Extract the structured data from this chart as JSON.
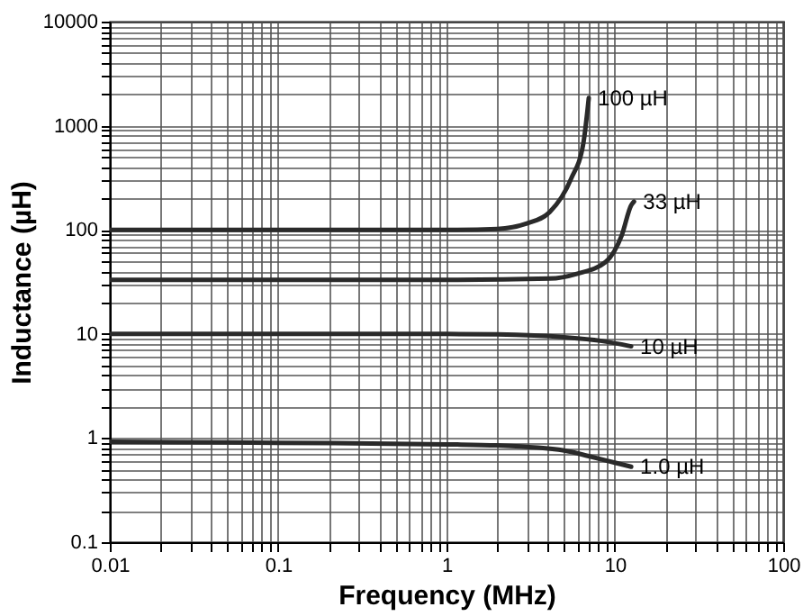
{
  "chart_data": {
    "type": "line",
    "xlabel": "Frequency (MHz)",
    "ylabel": "Inductance (µH)",
    "log": "xy",
    "grid": true,
    "legend": false,
    "line_style": "solid",
    "marker": "none",
    "xlim": [
      0.01,
      100
    ],
    "ylim": [
      0.1,
      10000
    ],
    "xticks": [
      0.01,
      {
        "value": 0.02,
        "label": null
      },
      {
        "value": 0.03,
        "label": null
      },
      {
        "value": 0.04,
        "label": null
      },
      {
        "value": 0.05,
        "label": null
      },
      {
        "value": 0.06,
        "label": null
      },
      {
        "value": 0.07,
        "label": null
      },
      {
        "value": 0.08,
        "label": null
      },
      {
        "value": 0.09,
        "label": null
      },
      0.1,
      {
        "value": 0.2,
        "label": null
      },
      {
        "value": 0.3,
        "label": null
      },
      {
        "value": 0.4,
        "label": null
      },
      {
        "value": 0.5,
        "label": null
      },
      {
        "value": 0.6,
        "label": null
      },
      {
        "value": 0.7,
        "label": null
      },
      {
        "value": 0.8,
        "label": null
      },
      {
        "value": 0.9,
        "label": null
      },
      1,
      {
        "value": 2,
        "label": null
      },
      {
        "value": 3,
        "label": null
      },
      {
        "value": 4,
        "label": null
      },
      {
        "value": 5,
        "label": null
      },
      {
        "value": 6,
        "label": null
      },
      {
        "value": 7,
        "label": null
      },
      {
        "value": 8,
        "label": null
      },
      {
        "value": 9,
        "label": null
      },
      10,
      {
        "value": 20,
        "label": null
      },
      {
        "value": 30,
        "label": null
      },
      {
        "value": 40,
        "label": null
      },
      {
        "value": 50,
        "label": null
      },
      {
        "value": 60,
        "label": null
      },
      {
        "value": 70,
        "label": null
      },
      {
        "value": 80,
        "label": null
      },
      {
        "value": 90,
        "label": null
      },
      100
    ],
    "yticks": [
      0.1,
      {
        "value": 0.2,
        "label": null
      },
      {
        "value": 0.3,
        "label": null
      },
      {
        "value": 0.4,
        "label": null
      },
      {
        "value": 0.5,
        "label": null
      },
      {
        "value": 0.6,
        "label": null
      },
      {
        "value": 0.7,
        "label": null
      },
      {
        "value": 0.8,
        "label": null
      },
      {
        "value": 0.9,
        "label": null
      },
      1,
      {
        "value": 2,
        "label": null
      },
      {
        "value": 3,
        "label": null
      },
      {
        "value": 4,
        "label": null
      },
      {
        "value": 5,
        "label": null
      },
      {
        "value": 6,
        "label": null
      },
      {
        "value": 7,
        "label": null
      },
      {
        "value": 8,
        "label": null
      },
      {
        "value": 9,
        "label": null
      },
      10,
      {
        "value": 20,
        "label": null
      },
      {
        "value": 30,
        "label": null
      },
      {
        "value": 40,
        "label": null
      },
      {
        "value": 50,
        "label": null
      },
      {
        "value": 60,
        "label": null
      },
      {
        "value": 70,
        "label": null
      },
      {
        "value": 80,
        "label": null
      },
      {
        "value": 90,
        "label": null
      },
      100,
      {
        "value": 200,
        "label": null
      },
      {
        "value": 300,
        "label": null
      },
      {
        "value": 400,
        "label": null
      },
      {
        "value": 500,
        "label": null
      },
      {
        "value": 600,
        "label": null
      },
      {
        "value": 700,
        "label": null
      },
      {
        "value": 800,
        "label": null
      },
      {
        "value": 900,
        "label": null
      },
      1000,
      {
        "value": 2000,
        "label": null
      },
      {
        "value": 3000,
        "label": null
      },
      {
        "value": 4000,
        "label": null
      },
      {
        "value": 5000,
        "label": null
      },
      {
        "value": 6000,
        "label": null
      },
      {
        "value": 7000,
        "label": null
      },
      {
        "value": 8000,
        "label": null
      },
      {
        "value": 9000,
        "label": null
      },
      10000
    ],
    "series": [
      {
        "color": "#2a2a2a",
        "x": [
          0.01,
          0.1,
          1,
          2,
          3,
          4.1,
          5.5,
          6.5,
          7.0
        ],
        "values": [
          100,
          100,
          100,
          102,
          115,
          148,
          310,
          680,
          1850
        ]
      },
      {
        "color": "#2a2a2a",
        "x": [
          0.01,
          0.1,
          1,
          4.1,
          6,
          8.8,
          11,
          12.5,
          13
        ],
        "values": [
          33,
          33,
          33,
          34,
          38,
          49,
          89,
          172,
          187
        ]
      },
      {
        "color": "#2a2a2a",
        "x": [
          0.01,
          0.1,
          1,
          2,
          5,
          8.2,
          12.5
        ],
        "values": [
          10,
          10,
          10,
          9.9,
          9.3,
          8.6,
          7.6
        ]
      },
      {
        "color": "#2a2a2a",
        "x": [
          0.01,
          0.1,
          1,
          2,
          5,
          7,
          10,
          12.5
        ],
        "values": [
          0.92,
          0.9,
          0.87,
          0.85,
          0.76,
          0.67,
          0.58,
          0.53
        ]
      }
    ],
    "annotations": [
      {
        "text": "100 µH",
        "x": 7.0,
        "y": 1850
      },
      {
        "text": "33 µH",
        "x": 13,
        "y": 187
      },
      {
        "text": "10 µH",
        "x": 12.5,
        "y": 7.6
      },
      {
        "text": "1.0 µH",
        "x": 12.5,
        "y": 0.53
      }
    ]
  }
}
